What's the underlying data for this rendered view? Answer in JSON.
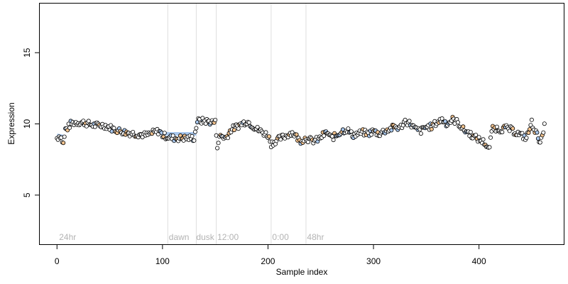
{
  "chart_data": {
    "type": "scatter",
    "title": "",
    "xlabel": "Sample index",
    "ylabel": "Expression",
    "xlim": [
      -17,
      481
    ],
    "ylim": [
      1.5,
      18.5
    ],
    "xticks": [
      0,
      100,
      200,
      300,
      400
    ],
    "yticks": [
      5,
      10,
      15
    ],
    "grid": false,
    "legend": "none",
    "colors": {
      "frame": "#000000",
      "vline": "#dedede",
      "annotation": "#b3b3b3",
      "point_stroke": "#000000",
      "point_fill_default": "#ffffff",
      "point_fill_orange": "#f5c48f",
      "point_fill_blue": "#a9c8ee",
      "trend_band": "#a9c8ee"
    },
    "vlines": [
      105,
      132,
      151,
      203,
      236
    ],
    "annotations": [
      {
        "x": 2,
        "text": "24hr"
      },
      {
        "x": 106,
        "text": "dawn"
      },
      {
        "x": 132,
        "text": "dusk"
      },
      {
        "x": 152,
        "text": "12:00"
      },
      {
        "x": 204,
        "text": "0:00"
      },
      {
        "x": 237,
        "text": "48hr"
      }
    ],
    "trend_segments": [
      {
        "x1": 0,
        "y1": 9.2,
        "x2": 7,
        "y2": 9.1
      },
      {
        "x1": 100,
        "y1": 9.3,
        "x2": 132,
        "y2": 9.3
      },
      {
        "x1": 133,
        "y1": 10.2,
        "x2": 150,
        "y2": 10.1
      }
    ],
    "anchors": [
      [
        0,
        9.0
      ],
      [
        3,
        9.2
      ],
      [
        6,
        8.6
      ],
      [
        8,
        9.6
      ],
      [
        10,
        9.7
      ],
      [
        13,
        10.0
      ],
      [
        17,
        10.1
      ],
      [
        25,
        10.1
      ],
      [
        35,
        9.9
      ],
      [
        45,
        9.9
      ],
      [
        55,
        9.6
      ],
      [
        65,
        9.4
      ],
      [
        75,
        9.3
      ],
      [
        85,
        9.2
      ],
      [
        92,
        9.4
      ],
      [
        97,
        9.5
      ],
      [
        100,
        9.2
      ],
      [
        110,
        9.0
      ],
      [
        120,
        9.0
      ],
      [
        130,
        9.0
      ],
      [
        133,
        10.2
      ],
      [
        140,
        10.2
      ],
      [
        150,
        10.1
      ],
      [
        152,
        8.5
      ],
      [
        155,
        9.2
      ],
      [
        160,
        9.0
      ],
      [
        165,
        9.6
      ],
      [
        170,
        9.8
      ],
      [
        175,
        10.0
      ],
      [
        180,
        10.2
      ],
      [
        185,
        9.9
      ],
      [
        190,
        9.6
      ],
      [
        195,
        9.4
      ],
      [
        200,
        9.2
      ],
      [
        203,
        8.6
      ],
      [
        207,
        8.8
      ],
      [
        212,
        9.0
      ],
      [
        218,
        9.2
      ],
      [
        222,
        9.4
      ],
      [
        226,
        9.2
      ],
      [
        230,
        8.8
      ],
      [
        236,
        9.0
      ],
      [
        242,
        8.8
      ],
      [
        248,
        8.9
      ],
      [
        252,
        9.2
      ],
      [
        256,
        9.4
      ],
      [
        260,
        9.0
      ],
      [
        265,
        9.2
      ],
      [
        270,
        9.5
      ],
      [
        275,
        9.6
      ],
      [
        280,
        9.2
      ],
      [
        285,
        9.3
      ],
      [
        290,
        9.4
      ],
      [
        295,
        9.3
      ],
      [
        300,
        9.5
      ],
      [
        305,
        9.3
      ],
      [
        310,
        9.5
      ],
      [
        315,
        9.6
      ],
      [
        320,
        9.8
      ],
      [
        325,
        9.7
      ],
      [
        330,
        10.2
      ],
      [
        335,
        10.0
      ],
      [
        340,
        9.6
      ],
      [
        345,
        9.5
      ],
      [
        350,
        9.8
      ],
      [
        355,
        9.8
      ],
      [
        360,
        10.1
      ],
      [
        365,
        10.3
      ],
      [
        370,
        10.0
      ],
      [
        375,
        10.3
      ],
      [
        380,
        10.1
      ],
      [
        385,
        9.6
      ],
      [
        390,
        9.4
      ],
      [
        395,
        9.1
      ],
      [
        400,
        8.9
      ],
      [
        405,
        8.7
      ],
      [
        410,
        8.2
      ],
      [
        412,
        9.6
      ],
      [
        416,
        9.7
      ],
      [
        420,
        9.6
      ],
      [
        425,
        9.7
      ],
      [
        430,
        9.6
      ],
      [
        435,
        9.4
      ],
      [
        440,
        9.2
      ],
      [
        445,
        9.0
      ],
      [
        450,
        10.1
      ],
      [
        455,
        9.2
      ],
      [
        458,
        8.8
      ],
      [
        460,
        9.0
      ],
      [
        462,
        9.8
      ]
    ]
  }
}
